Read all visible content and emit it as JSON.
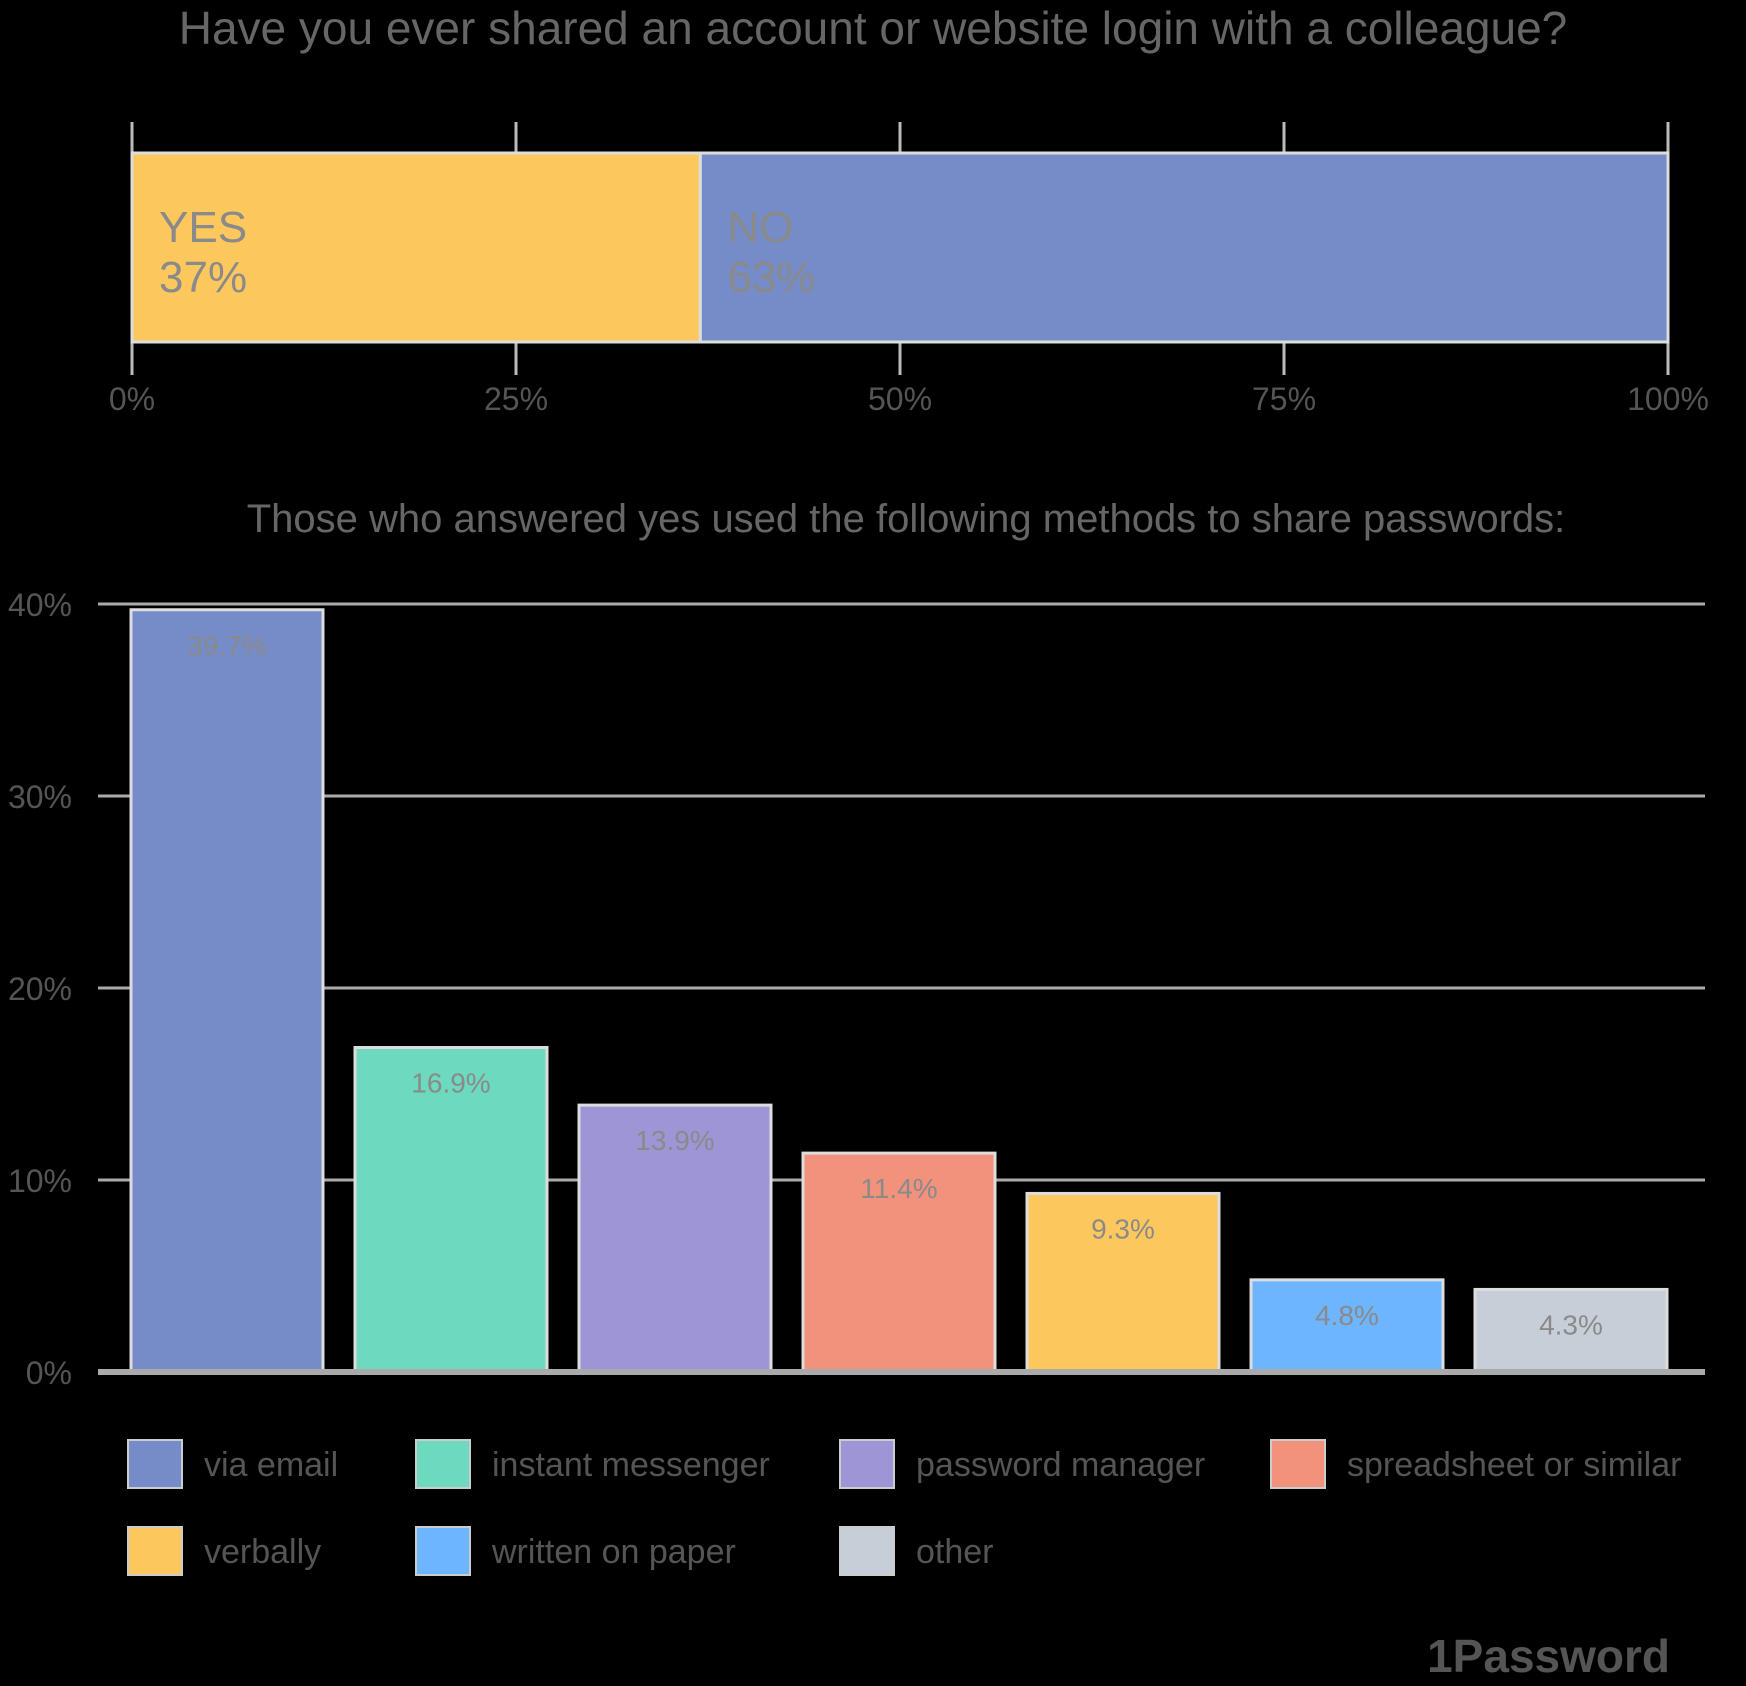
{
  "chart_data": [
    {
      "type": "bar",
      "orientation": "horizontal-stacked",
      "title": "Have you ever shared an account or website login with a colleague?",
      "series": [
        {
          "name": "YES",
          "value": 37,
          "label": "37%",
          "color": "#FCC85E"
        },
        {
          "name": "NO",
          "value": 63,
          "label": "63%",
          "color": "#758CC8"
        }
      ],
      "xlim": [
        0,
        100
      ],
      "ticks": [
        "0%",
        "25%",
        "50%",
        "75%",
        "100%"
      ],
      "grid": false
    },
    {
      "type": "bar",
      "title": "Those who answered yes used the following methods to share passwords:",
      "categories": [
        "via email",
        "instant messenger",
        "password manager",
        "spreadsheet or similar",
        "verbally",
        "written on paper",
        "other"
      ],
      "values": [
        39.7,
        16.9,
        13.9,
        11.4,
        9.3,
        4.8,
        4.3
      ],
      "labels": [
        "39.7%",
        "16.9%",
        "13.9%",
        "11.4%",
        "9.3%",
        "4.8%",
        "4.3%"
      ],
      "colors": [
        "#758CC8",
        "#6DD9BF",
        "#9D95D6",
        "#F2927D",
        "#FCC85E",
        "#6EB5FF",
        "#C8CED8"
      ],
      "ylim": [
        0,
        40
      ],
      "yticks": [
        "0%",
        "10%",
        "20%",
        "30%",
        "40%"
      ],
      "grid": true,
      "legend": "bottom"
    }
  ],
  "brand": "1Password"
}
